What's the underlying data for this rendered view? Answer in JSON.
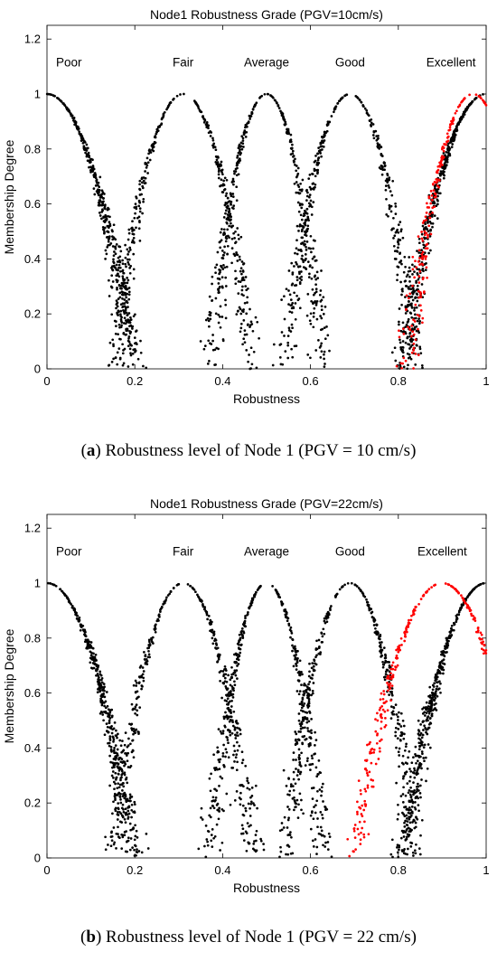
{
  "figure": {
    "captions": [
      {
        "letter": "a",
        "text": " Robustness level of Node 1 (PGV = 10 cm/s)",
        "open": "(",
        "close": ")"
      },
      {
        "letter": "b",
        "text": " Robustness level of Node 1 (PGV = 22 cm/s)",
        "open": "(",
        "close": ")"
      }
    ]
  },
  "colors": {
    "base_points": "#000000",
    "highlight_points": "#ff0000",
    "axes": "#000000"
  },
  "chart_data": [
    {
      "type": "scatter",
      "title": "Node1 Robustness Grade (PGV=10cm/s)",
      "xlabel": "Robustness",
      "ylabel": "Membership Degree",
      "xlim": [
        0,
        1
      ],
      "ylim": [
        0,
        1.25
      ],
      "xticks": [
        "0",
        "0.2",
        "0.4",
        "0.6",
        "0.8",
        "1"
      ],
      "yticks": [
        "0",
        "0.2",
        "0.4",
        "0.6",
        "0.8",
        "1",
        "1.2"
      ],
      "grid": false,
      "grade_labels": [
        {
          "text": "Poor",
          "x": 0.05
        },
        {
          "text": "Fair",
          "x": 0.31
        },
        {
          "text": "Average",
          "x": 0.5
        },
        {
          "text": "Good",
          "x": 0.69
        },
        {
          "text": "Excellent",
          "x": 0.92
        }
      ],
      "series": [
        {
          "color": "#000000",
          "points_per_curve": 420,
          "curves": [
            {
              "shape": "falling",
              "center": 0.0,
              "width": 0.2
            },
            {
              "shape": "peak",
              "center": 0.31,
              "width": 0.16
            },
            {
              "shape": "peak",
              "center": 0.5,
              "width": 0.13
            },
            {
              "shape": "peak",
              "center": 0.69,
              "width": 0.15
            },
            {
              "shape": "rising",
              "center": 1.0,
              "width": 0.19
            }
          ]
        },
        {
          "color": "#ff0000",
          "points_per_curve": 360,
          "curves": [
            {
              "shape": "peak",
              "center": 0.97,
              "width": 0.15
            }
          ]
        }
      ]
    },
    {
      "type": "scatter",
      "title": "Node1 Robustness Grade (PGV=22cm/s)",
      "xlabel": "Robustness",
      "ylabel": "Membership Degree",
      "xlim": [
        0,
        1
      ],
      "ylim": [
        0,
        1.25
      ],
      "xticks": [
        "0",
        "0.2",
        "0.4",
        "0.6",
        "0.8",
        "1"
      ],
      "yticks": [
        "0",
        "0.2",
        "0.4",
        "0.6",
        "0.8",
        "1",
        "1.2"
      ],
      "grid": false,
      "grade_labels": [
        {
          "text": "Poor",
          "x": 0.05
        },
        {
          "text": "Fair",
          "x": 0.31
        },
        {
          "text": "Average",
          "x": 0.5
        },
        {
          "text": "Good",
          "x": 0.69
        },
        {
          "text": "Excellent",
          "x": 0.9
        }
      ],
      "series": [
        {
          "color": "#000000",
          "points_per_curve": 420,
          "curves": [
            {
              "shape": "falling",
              "center": 0.0,
              "width": 0.2
            },
            {
              "shape": "peak",
              "center": 0.31,
              "width": 0.16
            },
            {
              "shape": "peak",
              "center": 0.5,
              "width": 0.13
            },
            {
              "shape": "peak",
              "center": 0.69,
              "width": 0.15
            },
            {
              "shape": "rising",
              "center": 1.0,
              "width": 0.19
            }
          ]
        },
        {
          "color": "#ff0000",
          "points_per_curve": 400,
          "curves": [
            {
              "shape": "peak",
              "center": 0.9,
              "width": 0.2
            }
          ]
        }
      ]
    }
  ]
}
